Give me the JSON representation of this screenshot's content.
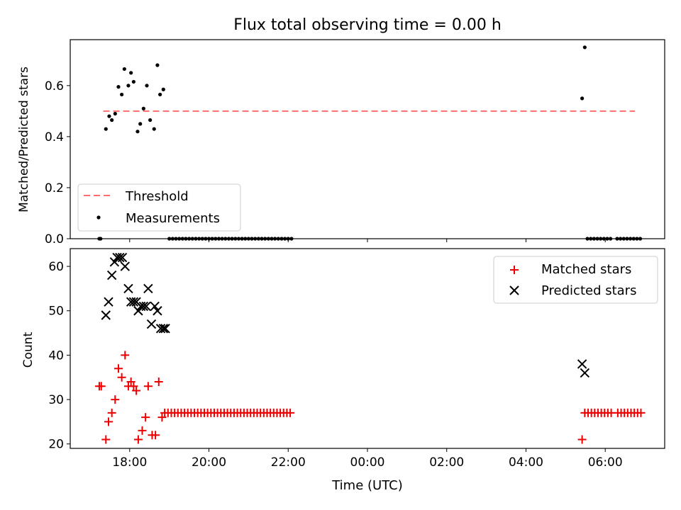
{
  "figure": {
    "title": "Flux total observing time = 0.00 h"
  },
  "colors": {
    "threshold": "#ff6f6f",
    "measurement": "#000000",
    "matched": "#ee0000",
    "predicted": "#000000"
  },
  "chart_data": [
    {
      "id": "top",
      "type": "scatter",
      "xlabel": "",
      "ylabel": "Matched/Predicted stars",
      "x_unit": "time of day (UTC), spanning midnight",
      "xlim": [
        "16:30",
        "07:30"
      ],
      "ylim": [
        0.0,
        0.78
      ],
      "yticks": [
        0.0,
        0.2,
        0.4,
        0.6
      ],
      "ytick_labels": [
        "0.0",
        "0.2",
        "0.4",
        "0.6"
      ],
      "grid": false,
      "legend": {
        "location": "lower-left",
        "entries": [
          "Threshold",
          "Measurements"
        ]
      },
      "threshold": {
        "name": "Threshold",
        "value": 0.5,
        "x_range": [
          "17:20",
          "06:45"
        ],
        "style": "dashed"
      },
      "series": [
        {
          "name": "Measurements",
          "marker": "dot",
          "points": [
            [
              "17:14",
              0.0
            ],
            [
              "17:16",
              0.0
            ],
            [
              "17:24",
              0.43
            ],
            [
              "17:29",
              0.48
            ],
            [
              "17:33",
              0.465
            ],
            [
              "17:38",
              0.49
            ],
            [
              "17:43",
              0.595
            ],
            [
              "17:48",
              0.565
            ],
            [
              "17:52",
              0.665
            ],
            [
              "17:58",
              0.6
            ],
            [
              "18:02",
              0.65
            ],
            [
              "18:06",
              0.615
            ],
            [
              "18:12",
              0.42
            ],
            [
              "18:16",
              0.45
            ],
            [
              "18:21",
              0.51
            ],
            [
              "18:26",
              0.6
            ],
            [
              "18:31",
              0.465
            ],
            [
              "18:37",
              0.43
            ],
            [
              "18:42",
              0.68
            ],
            [
              "18:46",
              0.565
            ],
            [
              "18:51",
              0.585
            ],
            [
              "19:00",
              0.0
            ],
            [
              "19:05",
              0.0
            ],
            [
              "19:10",
              0.0
            ],
            [
              "19:15",
              0.0
            ],
            [
              "19:20",
              0.0
            ],
            [
              "19:25",
              0.0
            ],
            [
              "19:30",
              0.0
            ],
            [
              "19:35",
              0.0
            ],
            [
              "19:40",
              0.0
            ],
            [
              "19:45",
              0.0
            ],
            [
              "19:50",
              0.0
            ],
            [
              "19:55",
              0.0
            ],
            [
              "20:00",
              0.0
            ],
            [
              "20:05",
              0.0
            ],
            [
              "20:10",
              0.0
            ],
            [
              "20:15",
              0.0
            ],
            [
              "20:20",
              0.0
            ],
            [
              "20:25",
              0.0
            ],
            [
              "20:30",
              0.0
            ],
            [
              "20:35",
              0.0
            ],
            [
              "20:40",
              0.0
            ],
            [
              "20:45",
              0.0
            ],
            [
              "20:50",
              0.0
            ],
            [
              "20:55",
              0.0
            ],
            [
              "21:00",
              0.0
            ],
            [
              "21:05",
              0.0
            ],
            [
              "21:10",
              0.0
            ],
            [
              "21:15",
              0.0
            ],
            [
              "21:20",
              0.0
            ],
            [
              "21:25",
              0.0
            ],
            [
              "21:30",
              0.0
            ],
            [
              "21:35",
              0.0
            ],
            [
              "21:40",
              0.0
            ],
            [
              "21:45",
              0.0
            ],
            [
              "21:50",
              0.0
            ],
            [
              "21:55",
              0.0
            ],
            [
              "22:00",
              0.0
            ],
            [
              "22:05",
              0.0
            ],
            [
              "05:25",
              0.55
            ],
            [
              "05:29",
              0.75
            ],
            [
              "05:33",
              0.0
            ],
            [
              "05:38",
              0.0
            ],
            [
              "05:43",
              0.0
            ],
            [
              "05:48",
              0.0
            ],
            [
              "05:53",
              0.0
            ],
            [
              "05:58",
              0.0
            ],
            [
              "06:03",
              0.0
            ],
            [
              "06:08",
              0.0
            ],
            [
              "06:18",
              0.0
            ],
            [
              "06:23",
              0.0
            ],
            [
              "06:28",
              0.0
            ],
            [
              "06:33",
              0.0
            ],
            [
              "06:38",
              0.0
            ],
            [
              "06:43",
              0.0
            ],
            [
              "06:48",
              0.0
            ],
            [
              "06:53",
              0.0
            ]
          ]
        }
      ]
    },
    {
      "id": "bottom",
      "type": "scatter",
      "xlabel": "Time (UTC)",
      "ylabel": "Count",
      "xlim": [
        "16:30",
        "07:30"
      ],
      "ylim": [
        19,
        64
      ],
      "yticks": [
        20,
        30,
        40,
        50,
        60
      ],
      "ytick_labels": [
        "20",
        "30",
        "40",
        "50",
        "60"
      ],
      "xticks": [
        "18:00",
        "20:00",
        "22:00",
        "00:00",
        "02:00",
        "04:00",
        "06:00"
      ],
      "xtick_labels": [
        "18:00",
        "20:00",
        "22:00",
        "00:00",
        "02:00",
        "04:00",
        "06:00"
      ],
      "grid": false,
      "legend": {
        "location": "top-right",
        "entries": [
          "Matched stars",
          "Predicted stars"
        ]
      },
      "series": [
        {
          "name": "Matched stars",
          "marker": "plus",
          "points": [
            [
              "17:14",
              33
            ],
            [
              "17:17",
              33
            ],
            [
              "17:24",
              21
            ],
            [
              "17:28",
              25
            ],
            [
              "17:33",
              27
            ],
            [
              "17:38",
              30
            ],
            [
              "17:43",
              37
            ],
            [
              "17:48",
              35
            ],
            [
              "17:53",
              40
            ],
            [
              "17:58",
              33
            ],
            [
              "18:02",
              34
            ],
            [
              "18:06",
              33
            ],
            [
              "18:10",
              32
            ],
            [
              "18:13",
              21
            ],
            [
              "18:19",
              23
            ],
            [
              "18:24",
              26
            ],
            [
              "18:28",
              33
            ],
            [
              "18:34",
              22
            ],
            [
              "18:39",
              22
            ],
            [
              "18:44",
              34
            ],
            [
              "18:49",
              26
            ],
            [
              "18:53",
              27
            ],
            [
              "18:58",
              27
            ],
            [
              "19:03",
              27
            ],
            [
              "19:08",
              27
            ],
            [
              "19:13",
              27
            ],
            [
              "19:18",
              27
            ],
            [
              "19:23",
              27
            ],
            [
              "19:28",
              27
            ],
            [
              "19:33",
              27
            ],
            [
              "19:38",
              27
            ],
            [
              "19:43",
              27
            ],
            [
              "19:48",
              27
            ],
            [
              "19:53",
              27
            ],
            [
              "19:58",
              27
            ],
            [
              "20:03",
              27
            ],
            [
              "20:08",
              27
            ],
            [
              "20:13",
              27
            ],
            [
              "20:18",
              27
            ],
            [
              "20:23",
              27
            ],
            [
              "20:28",
              27
            ],
            [
              "20:33",
              27
            ],
            [
              "20:38",
              27
            ],
            [
              "20:43",
              27
            ],
            [
              "20:48",
              27
            ],
            [
              "20:53",
              27
            ],
            [
              "20:58",
              27
            ],
            [
              "21:03",
              27
            ],
            [
              "21:08",
              27
            ],
            [
              "21:13",
              27
            ],
            [
              "21:18",
              27
            ],
            [
              "21:23",
              27
            ],
            [
              "21:28",
              27
            ],
            [
              "21:33",
              27
            ],
            [
              "21:38",
              27
            ],
            [
              "21:43",
              27
            ],
            [
              "21:48",
              27
            ],
            [
              "21:53",
              27
            ],
            [
              "21:58",
              27
            ],
            [
              "22:03",
              27
            ],
            [
              "05:25",
              21
            ],
            [
              "05:29",
              27
            ],
            [
              "05:34",
              27
            ],
            [
              "05:39",
              27
            ],
            [
              "05:44",
              27
            ],
            [
              "05:49",
              27
            ],
            [
              "05:54",
              27
            ],
            [
              "05:59",
              27
            ],
            [
              "06:04",
              27
            ],
            [
              "06:09",
              27
            ],
            [
              "06:19",
              27
            ],
            [
              "06:24",
              27
            ],
            [
              "06:29",
              27
            ],
            [
              "06:34",
              27
            ],
            [
              "06:39",
              27
            ],
            [
              "06:44",
              27
            ],
            [
              "06:49",
              27
            ],
            [
              "06:54",
              27
            ]
          ]
        },
        {
          "name": "Predicted stars",
          "marker": "x",
          "points": [
            [
              "17:24",
              49
            ],
            [
              "17:28",
              52
            ],
            [
              "17:33",
              58
            ],
            [
              "17:37",
              61
            ],
            [
              "17:41",
              62
            ],
            [
              "17:45",
              62
            ],
            [
              "17:49",
              62
            ],
            [
              "17:53",
              60
            ],
            [
              "17:58",
              55
            ],
            [
              "18:02",
              52
            ],
            [
              "18:06",
              52
            ],
            [
              "18:10",
              52
            ],
            [
              "18:13",
              50
            ],
            [
              "18:17",
              51
            ],
            [
              "18:21",
              51
            ],
            [
              "18:25",
              51
            ],
            [
              "18:28",
              55
            ],
            [
              "18:33",
              47
            ],
            [
              "18:38",
              51
            ],
            [
              "18:42",
              50
            ],
            [
              "18:47",
              46
            ],
            [
              "18:51",
              46
            ],
            [
              "18:54",
              46
            ],
            [
              "05:25",
              38
            ],
            [
              "05:29",
              36
            ]
          ]
        }
      ]
    }
  ]
}
